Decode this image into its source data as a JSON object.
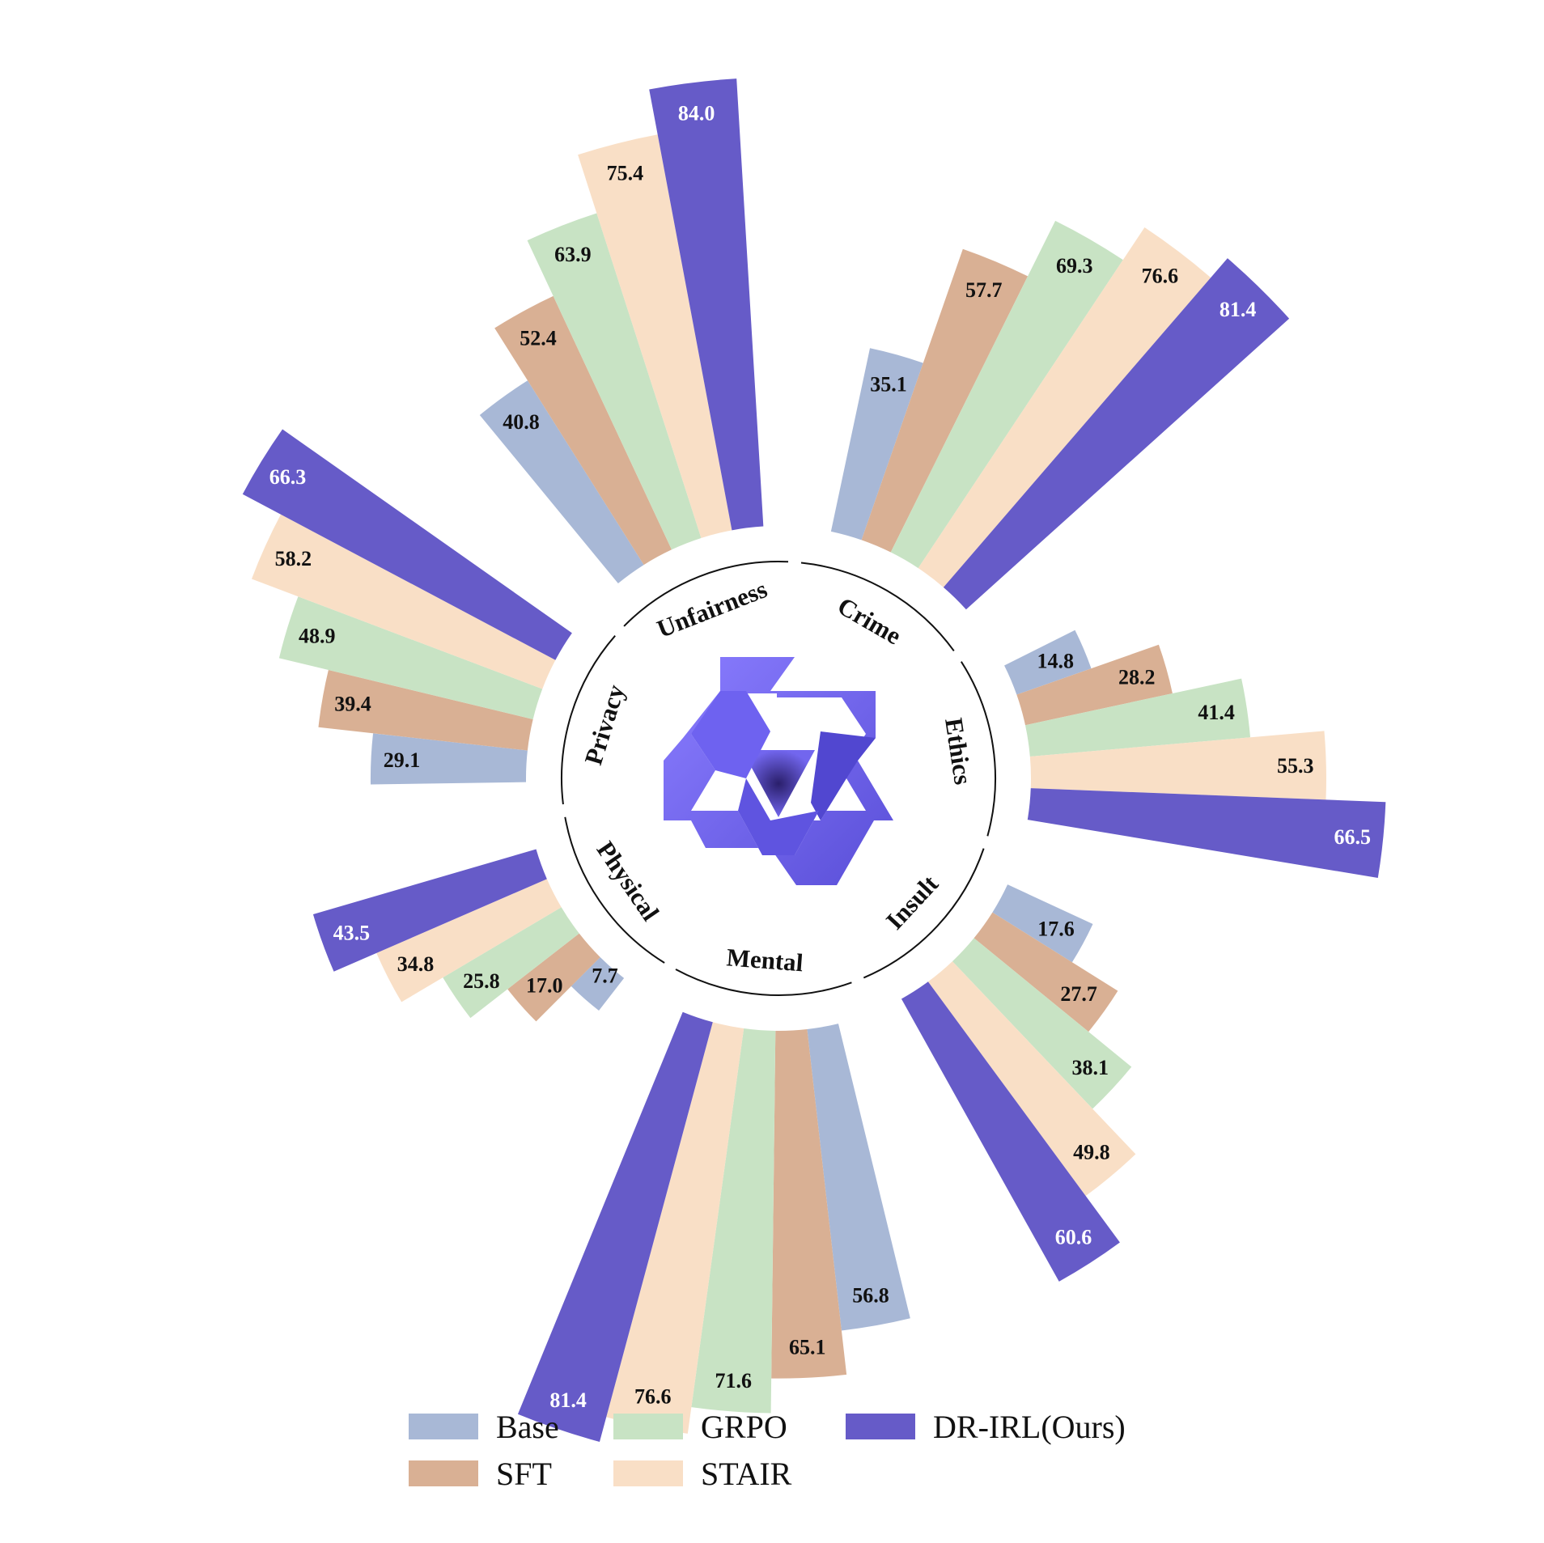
{
  "chart_data": {
    "type": "bar",
    "subtype": "circular-grouped-bar",
    "title": "",
    "xlabel": "",
    "ylabel": "",
    "categories": [
      "Crime",
      "Ethics",
      "Insult",
      "Mental",
      "Physical",
      "Privacy",
      "Unfairness"
    ],
    "series": [
      {
        "name": "Base",
        "color": "#a8b8d6",
        "label_color": "#111111",
        "values": [
          35.1,
          14.8,
          17.6,
          56.8,
          7.7,
          29.1,
          40.8
        ]
      },
      {
        "name": "SFT",
        "color": "#d9b094",
        "label_color": "#111111",
        "values": [
          57.7,
          28.2,
          27.7,
          65.1,
          17.0,
          39.4,
          52.4
        ]
      },
      {
        "name": "GRPO",
        "color": "#c8e3c4",
        "label_color": "#111111",
        "values": [
          69.3,
          41.4,
          38.1,
          71.6,
          25.8,
          48.9,
          63.9
        ]
      },
      {
        "name": "STAIR",
        "color": "#f9dfc6",
        "label_color": "#111111",
        "values": [
          76.6,
          55.3,
          49.8,
          76.6,
          34.8,
          58.2,
          75.4
        ]
      },
      {
        "name": "DR-IRL(Ours)",
        "color": "#665bc8",
        "label_color": "#ffffff",
        "values": [
          81.4,
          66.5,
          60.6,
          81.4,
          43.5,
          66.3,
          84.0
        ]
      }
    ],
    "legend_position": "bottom",
    "grid": false,
    "center_icon": "qwen-logo-icon"
  }
}
